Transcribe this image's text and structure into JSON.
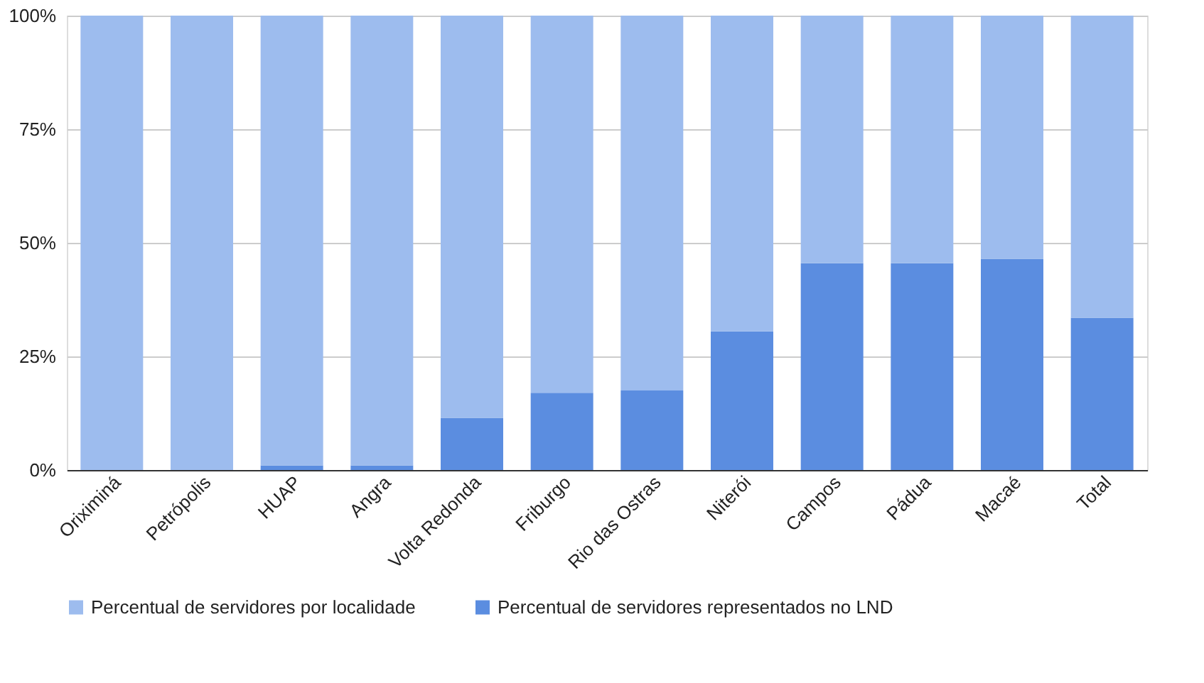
{
  "chart_data": {
    "type": "bar",
    "stacked": true,
    "categories": [
      "Oriximiná",
      "Petrópolis",
      "HUAP",
      "Angra",
      "Volta Redonda",
      "Friburgo",
      "Rio das Ostras",
      "Niterói",
      "Campos",
      "Pádua",
      "Macaé",
      "Total"
    ],
    "series": [
      {
        "name": "Percentual de servidores representados no LND",
        "color": "#5b8de0",
        "values": [
          0,
          0,
          1,
          1,
          11.5,
          17,
          17.5,
          30.5,
          45.5,
          45.5,
          46.5,
          33.5
        ]
      },
      {
        "name": "Percentual de servidores por localidade",
        "color": "#9dbcee",
        "values": [
          100,
          100,
          99,
          99,
          88.5,
          83,
          82.5,
          69.5,
          54.5,
          54.5,
          53.5,
          66.5
        ]
      }
    ],
    "ylim": [
      0,
      100
    ],
    "yticks": [
      {
        "value": 0,
        "label": "0%"
      },
      {
        "value": 25,
        "label": "25%"
      },
      {
        "value": 50,
        "label": "50%"
      },
      {
        "value": 75,
        "label": "75%"
      },
      {
        "value": 100,
        "label": "100%"
      }
    ],
    "grid": "y",
    "legend": "bottom"
  }
}
